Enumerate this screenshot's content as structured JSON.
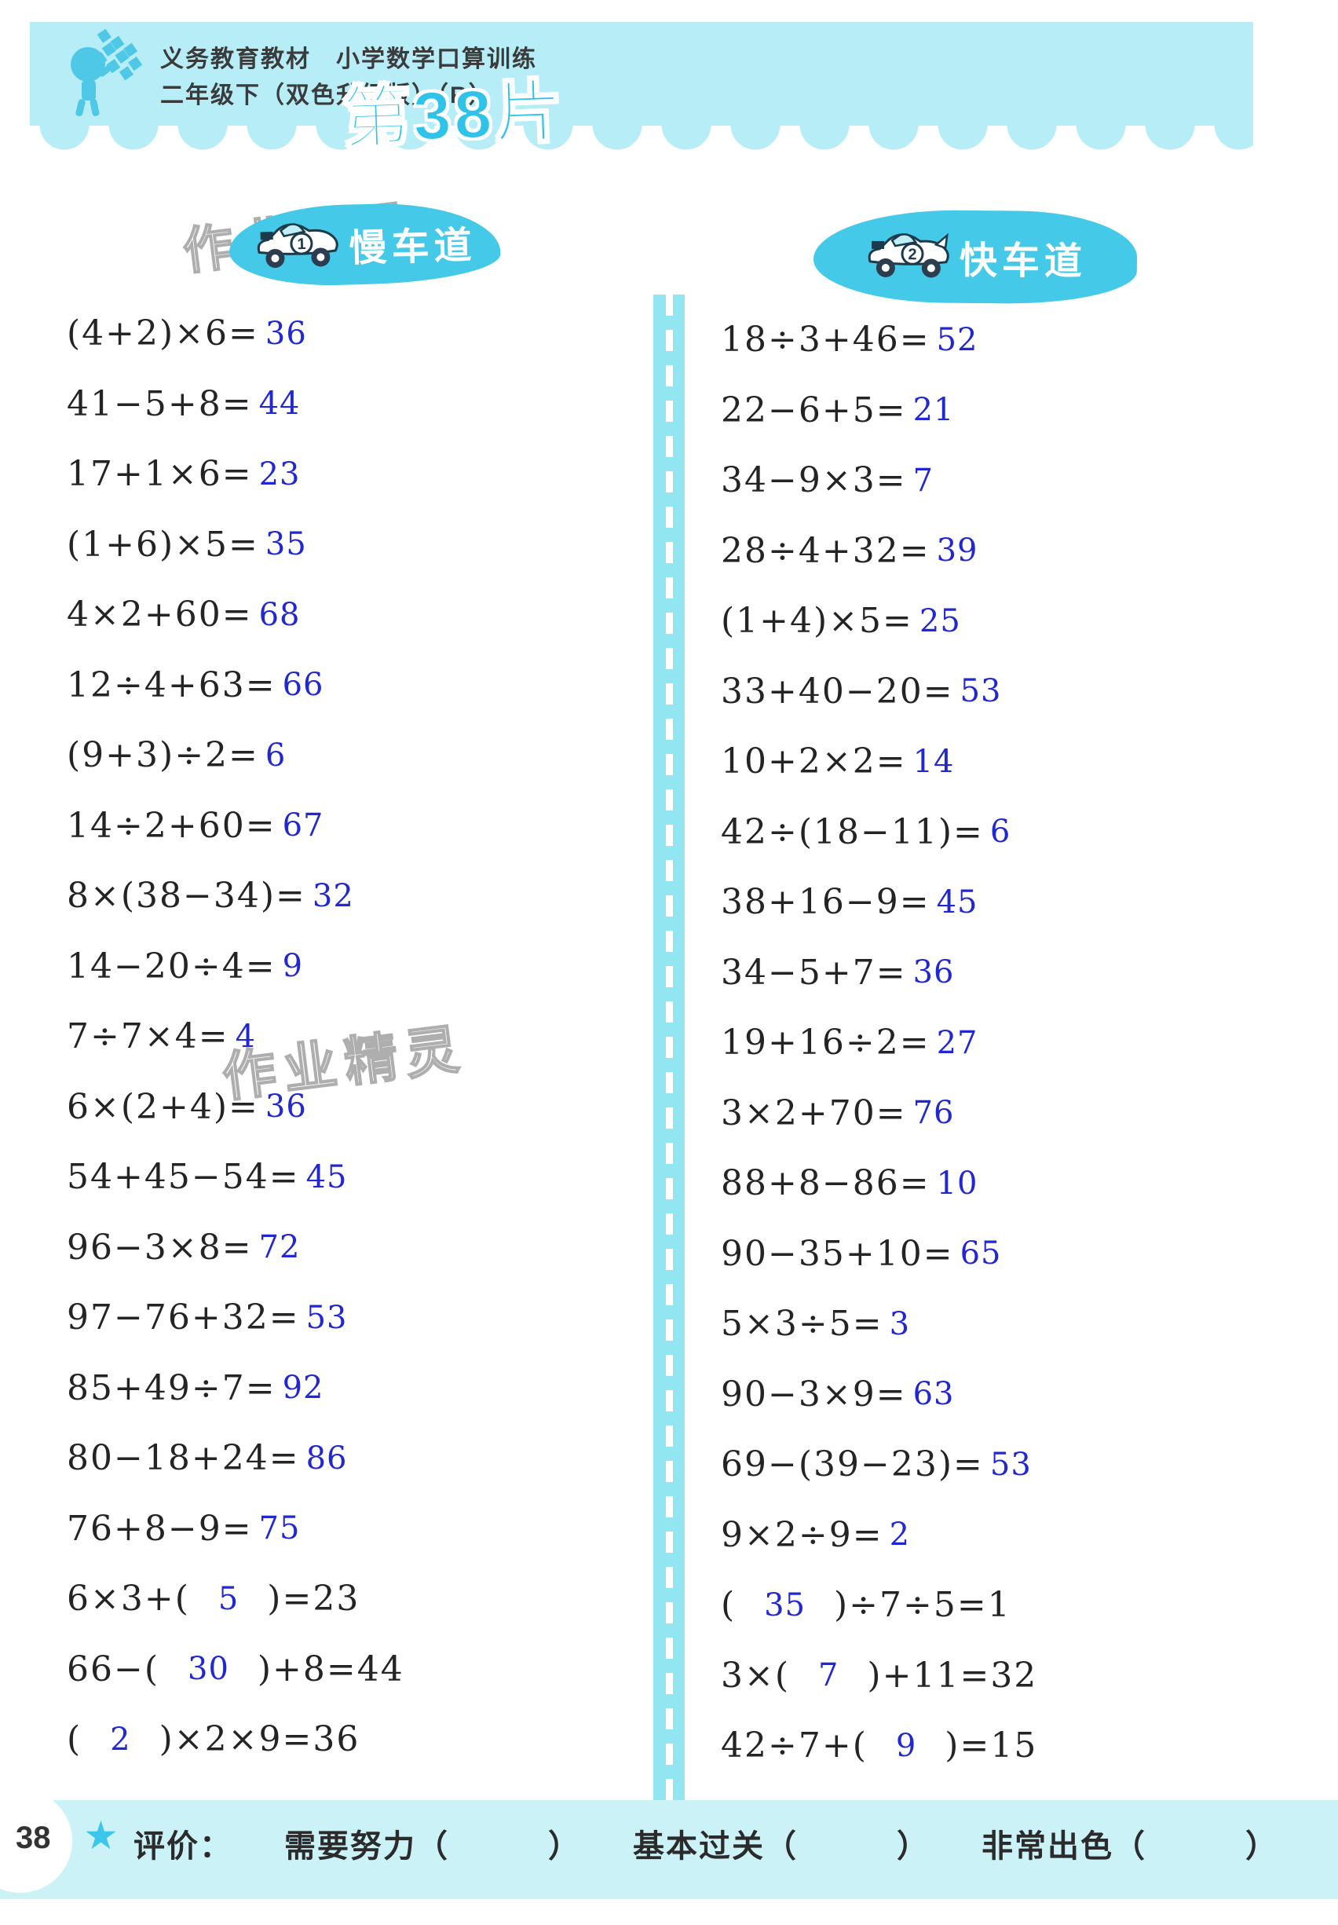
{
  "header": {
    "line1": "义务教育教材　小学数学口算训练",
    "line2": "二年级下（双色升级版）（R）",
    "title": "第38片"
  },
  "watermark": "作业精灵",
  "colors": {
    "banner": "#b6edf7",
    "lane_blob": "#45c9e9",
    "title_accent": "#2fc3e9",
    "answer_blue": "#2128d2",
    "footer_band": "#cbf2f7"
  },
  "columns": {
    "left": {
      "label": "慢车道",
      "car_number": "1",
      "problems": [
        {
          "pre": "(4+2)×6=",
          "ans": "36",
          "post": ""
        },
        {
          "pre": "41−5+8=",
          "ans": "44",
          "post": ""
        },
        {
          "pre": "17+1×6=",
          "ans": "23",
          "post": ""
        },
        {
          "pre": "(1+6)×5=",
          "ans": "35",
          "post": ""
        },
        {
          "pre": "4×2+60=",
          "ans": "68",
          "post": ""
        },
        {
          "pre": "12÷4+63=",
          "ans": "66",
          "post": ""
        },
        {
          "pre": "(9+3)÷2=",
          "ans": "6",
          "post": ""
        },
        {
          "pre": "14÷2+60=",
          "ans": "67",
          "post": ""
        },
        {
          "pre": "8×(38−34)=",
          "ans": "32",
          "post": ""
        },
        {
          "pre": "14−20÷4=",
          "ans": "9",
          "post": ""
        },
        {
          "pre": "7÷7×4=",
          "ans": "4",
          "post": ""
        },
        {
          "pre": "6×(2+4)=",
          "ans": "36",
          "post": ""
        },
        {
          "pre": "54+45−54=",
          "ans": "45",
          "post": ""
        },
        {
          "pre": "96−3×8=",
          "ans": "72",
          "post": ""
        },
        {
          "pre": "97−76+32=",
          "ans": "53",
          "post": ""
        },
        {
          "pre": "85+49÷7=",
          "ans": "92",
          "post": ""
        },
        {
          "pre": "80−18+24=",
          "ans": "86",
          "post": ""
        },
        {
          "pre": "76+8−9=",
          "ans": "75",
          "post": ""
        },
        {
          "pre": "6×3+(  ",
          "ans": "5",
          "post": "  )=23"
        },
        {
          "pre": "66−(  ",
          "ans": "30",
          "post": "  )+8=44"
        },
        {
          "pre": "(  ",
          "ans": "2",
          "post": "  )×2×9=36"
        }
      ]
    },
    "right": {
      "label": "快车道",
      "car_number": "2",
      "problems": [
        {
          "pre": "18÷3+46=",
          "ans": "52",
          "post": ""
        },
        {
          "pre": "22−6+5=",
          "ans": "21",
          "post": ""
        },
        {
          "pre": "34−9×3=",
          "ans": "7",
          "post": ""
        },
        {
          "pre": "28÷4+32=",
          "ans": "39",
          "post": ""
        },
        {
          "pre": "(1+4)×5=",
          "ans": "25",
          "post": ""
        },
        {
          "pre": "33+40−20=",
          "ans": "53",
          "post": ""
        },
        {
          "pre": "10+2×2=",
          "ans": "14",
          "post": ""
        },
        {
          "pre": "42÷(18−11)=",
          "ans": "6",
          "post": ""
        },
        {
          "pre": "38+16−9=",
          "ans": "45",
          "post": ""
        },
        {
          "pre": "34−5+7=",
          "ans": "36",
          "post": ""
        },
        {
          "pre": "19+16÷2=",
          "ans": "27",
          "post": ""
        },
        {
          "pre": "3×2+70=",
          "ans": "76",
          "post": ""
        },
        {
          "pre": "88+8−86=",
          "ans": "10",
          "post": ""
        },
        {
          "pre": "90−35+10=",
          "ans": "65",
          "post": ""
        },
        {
          "pre": "5×3÷5=",
          "ans": "3",
          "post": ""
        },
        {
          "pre": "90−3×9=",
          "ans": "63",
          "post": ""
        },
        {
          "pre": "69−(39−23)=",
          "ans": "53",
          "post": ""
        },
        {
          "pre": "9×2÷9=",
          "ans": "2",
          "post": ""
        },
        {
          "pre": "(  ",
          "ans": "35",
          "post": "  )÷7÷5=1"
        },
        {
          "pre": "3×(  ",
          "ans": "7",
          "post": "  )+11=32"
        },
        {
          "pre": "42÷7+(  ",
          "ans": "9",
          "post": "  )=15"
        }
      ]
    }
  },
  "footer": {
    "page": "38",
    "star": "★",
    "eval_label": "评价：",
    "options": [
      "需要努力（　　　）",
      "基本过关（　　　）",
      "非常出色（　　　）"
    ]
  }
}
